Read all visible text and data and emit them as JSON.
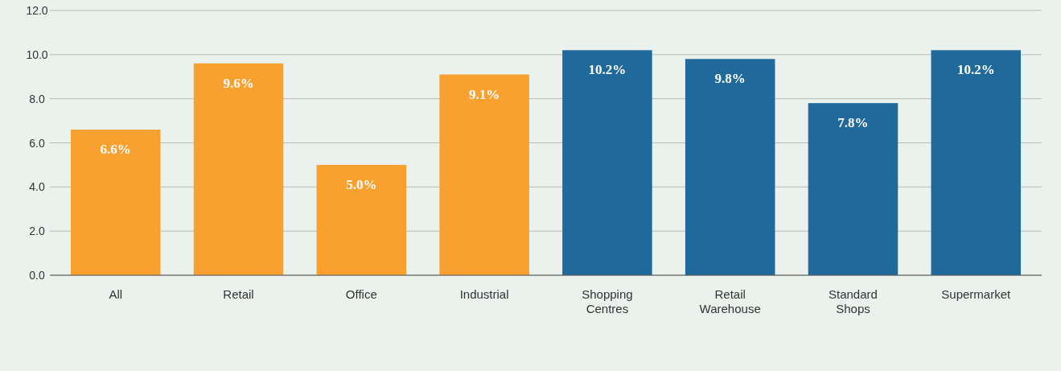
{
  "chart_data": {
    "type": "bar",
    "categories": [
      "All",
      "Retail",
      "Office",
      "Industrial",
      "Shopping Centres",
      "Retail Warehouse",
      "Standard Shops",
      "Supermarket"
    ],
    "values": [
      6.6,
      9.6,
      5.0,
      9.1,
      10.2,
      9.8,
      7.8,
      10.2
    ],
    "colors": [
      "#f9a130",
      "#f9a130",
      "#f9a130",
      "#f9a130",
      "#1f6a9b",
      "#1f6a9b",
      "#1f6a9b",
      "#1f6a9b"
    ],
    "value_labels": [
      "6.6%",
      "9.6%",
      "5.0%",
      "9.1%",
      "10.2%",
      "9.8%",
      "7.8%",
      "10.2%"
    ],
    "ylim": [
      0,
      12
    ],
    "yticks": [
      {
        "value": 0,
        "label": "0.0"
      },
      {
        "value": 2,
        "label": "2.0"
      },
      {
        "value": 4,
        "label": "4.0"
      },
      {
        "value": 6,
        "label": "6.0"
      },
      {
        "value": 8,
        "label": "8.0"
      },
      {
        "value": 10,
        "label": "10.0"
      },
      {
        "value": 12,
        "label": "12.0"
      }
    ],
    "grid": "y"
  }
}
